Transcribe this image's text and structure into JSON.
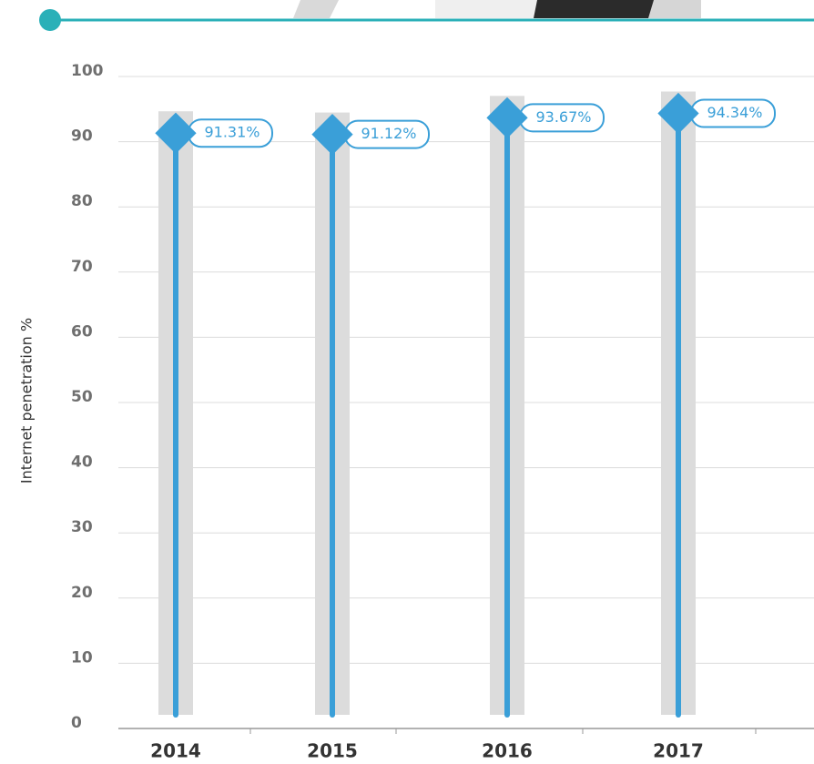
{
  "chart_data": {
    "type": "lollipop",
    "y_label": "Internet penetration %",
    "categories": [
      "2014",
      "2015",
      "2016",
      "2017"
    ],
    "values": [
      91.31,
      91.12,
      93.67,
      94.34
    ],
    "value_labels": [
      "91.31%",
      "91.12%",
      "93.67%",
      "94.34%"
    ],
    "color": "#3a9fd8",
    "ylim": [
      0,
      100
    ],
    "yticks": [
      0,
      10,
      20,
      30,
      40,
      50,
      60,
      70,
      80,
      90,
      100
    ],
    "grid": true
  }
}
